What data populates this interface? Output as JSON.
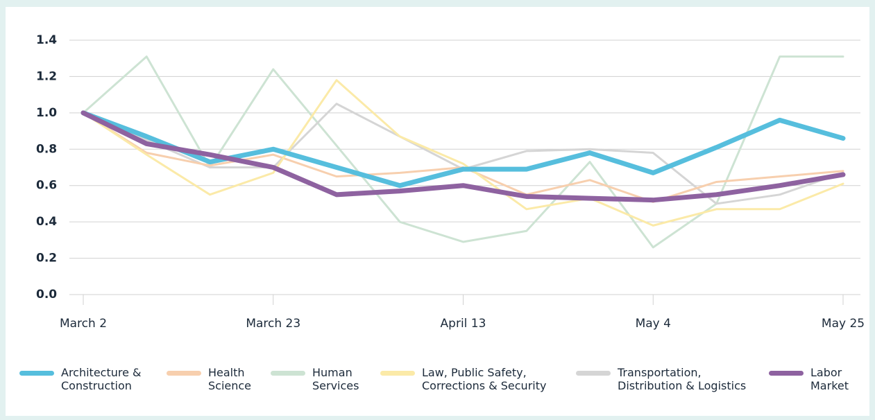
{
  "chart_data": {
    "type": "line",
    "x": [
      0,
      7,
      14,
      21,
      28,
      35,
      42,
      49,
      56,
      63,
      70,
      77,
      84
    ],
    "xlim": [
      0,
      84
    ],
    "xticks": [
      {
        "value": 0,
        "label": "March 2"
      },
      {
        "value": 21,
        "label": "March 23"
      },
      {
        "value": 42,
        "label": "April 13"
      },
      {
        "value": 63,
        "label": "May 4"
      },
      {
        "value": 84,
        "label": "May 25"
      }
    ],
    "ylim": [
      0,
      1.4
    ],
    "yticks": [
      {
        "value": 0,
        "label": "0.0"
      },
      0.2,
      0.4,
      0.6,
      0.8,
      {
        "value": 1,
        "label": "1.0"
      },
      1.2,
      1.4
    ],
    "grid": true,
    "legend": "bottom",
    "series": [
      {
        "name": "Architecture &\nConstruction",
        "color": "#56bedd",
        "values": [
          1.0,
          0.87,
          0.73,
          0.8,
          0.7,
          0.6,
          0.69,
          0.69,
          0.78,
          0.67,
          0.81,
          0.96,
          0.86
        ]
      },
      {
        "name": "Health\nScience",
        "color": "#f7cfae",
        "values": [
          1.0,
          0.78,
          0.71,
          0.77,
          0.65,
          0.67,
          0.7,
          0.55,
          0.63,
          0.51,
          0.62,
          0.65,
          0.68
        ]
      },
      {
        "name": "Human\nServices",
        "color": "#cde3d3",
        "values": [
          1.0,
          1.31,
          0.7,
          1.24,
          0.82,
          0.4,
          0.29,
          0.35,
          0.73,
          0.26,
          0.5,
          1.31,
          1.31
        ]
      },
      {
        "name": "Law, Public Safety,\nCorrections & Security",
        "color": "#fbeaa8",
        "values": [
          1.0,
          0.77,
          0.55,
          0.67,
          1.18,
          0.87,
          0.72,
          0.47,
          0.53,
          0.38,
          0.47,
          0.47,
          0.61
        ]
      },
      {
        "name": "Transportation,\nDistribution & Logistics",
        "color": "#d5d5d5",
        "values": [
          1.0,
          0.85,
          0.7,
          0.7,
          1.05,
          0.87,
          0.69,
          0.79,
          0.8,
          0.78,
          0.5,
          0.55,
          0.67
        ]
      },
      {
        "name": "Labor\nMarket",
        "color": "#8e62a0",
        "values": [
          1.0,
          0.83,
          0.77,
          0.7,
          0.55,
          0.57,
          0.6,
          0.54,
          0.53,
          0.52,
          0.55,
          0.6,
          0.66
        ]
      }
    ]
  }
}
